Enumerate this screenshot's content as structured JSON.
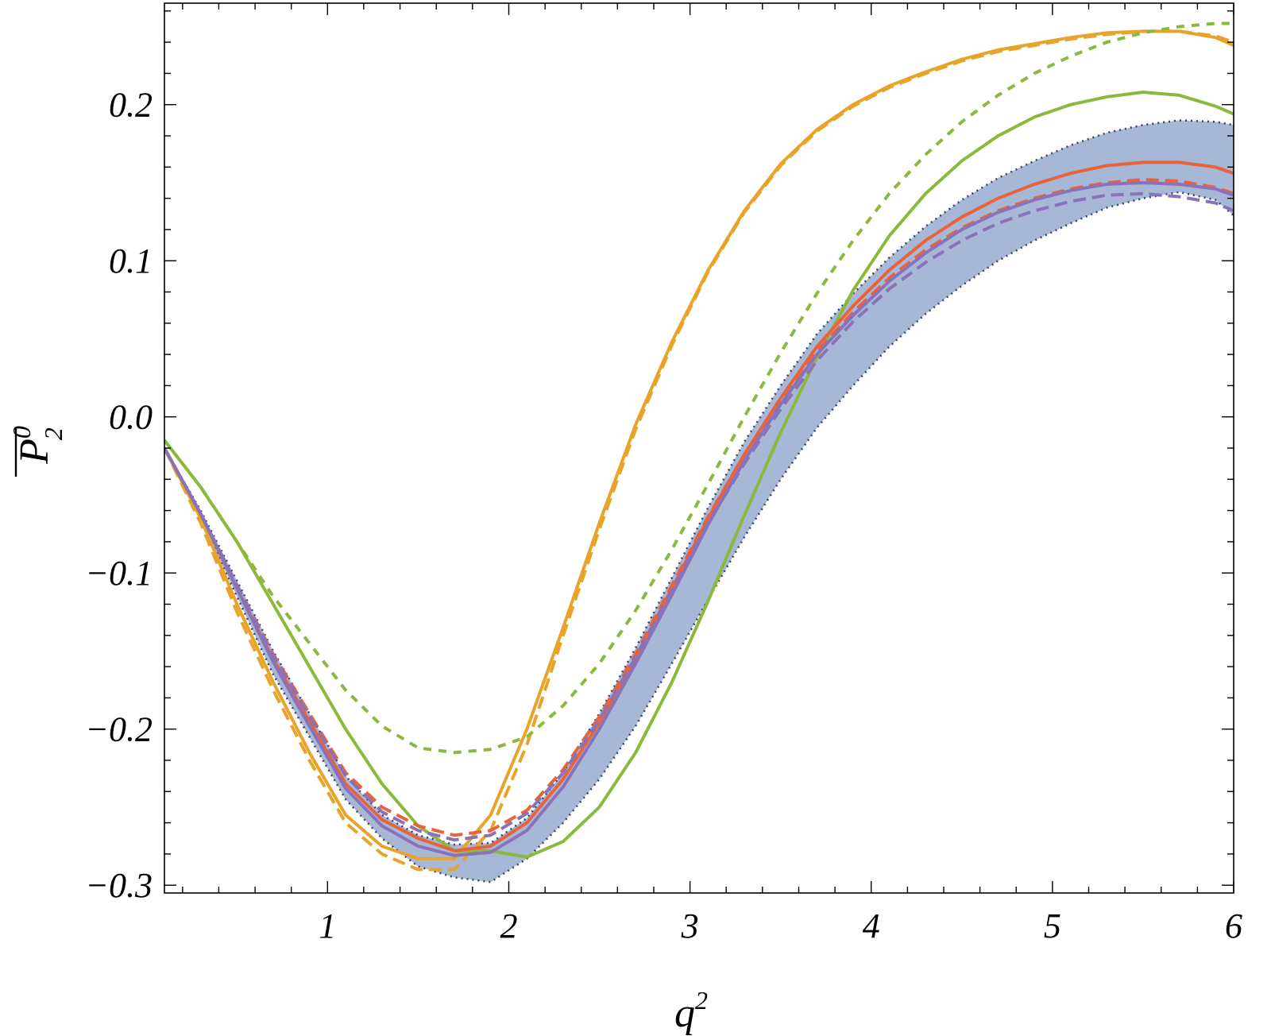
{
  "chart_data": {
    "type": "line",
    "title": "",
    "xlabel": "q",
    "xlabel_sup": "2",
    "ylabel": "P",
    "ylabel_sup": "0",
    "ylabel_sub": "2",
    "xlim": [
      0.1,
      6.0
    ],
    "ylim": [
      -0.305,
      0.265
    ],
    "grid": false,
    "legend": "none",
    "x_ticks": [
      1,
      2,
      3,
      4,
      5,
      6
    ],
    "x_tick_labels": [
      "1",
      "2",
      "3",
      "4",
      "5",
      "6"
    ],
    "y_ticks": [
      0.2,
      0.1,
      0.0,
      -0.1,
      -0.2,
      -0.3
    ],
    "y_tick_labels": [
      "0.2",
      "0.1",
      "0.0",
      "−0.1",
      "−0.2",
      "−0.3"
    ],
    "x": [
      0.1,
      0.3,
      0.5,
      0.7,
      0.9,
      1.1,
      1.3,
      1.5,
      1.7,
      1.9,
      2.1,
      2.3,
      2.5,
      2.7,
      2.9,
      3.1,
      3.3,
      3.5,
      3.7,
      3.9,
      4.1,
      4.3,
      4.5,
      4.7,
      4.9,
      5.1,
      5.3,
      5.5,
      5.7,
      5.9,
      6.0
    ],
    "band": {
      "color": "#a6b8d6",
      "edge_color": "#3a4560",
      "upper": [
        -0.02,
        -0.06,
        -0.105,
        -0.15,
        -0.19,
        -0.23,
        -0.255,
        -0.268,
        -0.274,
        -0.273,
        -0.257,
        -0.228,
        -0.19,
        -0.148,
        -0.103,
        -0.058,
        -0.016,
        0.02,
        0.053,
        0.079,
        0.102,
        0.122,
        0.139,
        0.153,
        0.164,
        0.174,
        0.182,
        0.187,
        0.19,
        0.189,
        0.187
      ],
      "lower": [
        -0.02,
        -0.065,
        -0.115,
        -0.165,
        -0.205,
        -0.245,
        -0.27,
        -0.288,
        -0.295,
        -0.298,
        -0.283,
        -0.26,
        -0.232,
        -0.198,
        -0.158,
        -0.117,
        -0.077,
        -0.04,
        -0.007,
        0.02,
        0.045,
        0.066,
        0.084,
        0.1,
        0.113,
        0.124,
        0.134,
        0.14,
        0.144,
        0.139,
        0.129
      ]
    },
    "series": [
      {
        "color": "#e8a42a",
        "style": "solid",
        "y": [
          -0.02,
          -0.065,
          -0.12,
          -0.17,
          -0.215,
          -0.255,
          -0.275,
          -0.283,
          -0.283,
          -0.255,
          -0.2,
          -0.135,
          -0.068,
          -0.005,
          0.048,
          0.094,
          0.132,
          0.162,
          0.184,
          0.2,
          0.212,
          0.221,
          0.229,
          0.235,
          0.239,
          0.243,
          0.246,
          0.247,
          0.247,
          0.243,
          0.238
        ]
      },
      {
        "color": "#e8a42a",
        "style": "dashed",
        "y": [
          -0.02,
          -0.068,
          -0.125,
          -0.175,
          -0.22,
          -0.26,
          -0.28,
          -0.29,
          -0.29,
          -0.265,
          -0.21,
          -0.14,
          -0.072,
          -0.008,
          0.046,
          0.093,
          0.131,
          0.161,
          0.183,
          0.199,
          0.211,
          0.22,
          0.228,
          0.234,
          0.238,
          0.242,
          0.245,
          0.247,
          0.247,
          0.244,
          0.24
        ]
      },
      {
        "color": "#8cb83c",
        "style": "solid",
        "y": [
          -0.015,
          -0.045,
          -0.08,
          -0.12,
          -0.16,
          -0.2,
          -0.235,
          -0.262,
          -0.278,
          -0.278,
          -0.282,
          -0.272,
          -0.25,
          -0.215,
          -0.17,
          -0.118,
          -0.063,
          -0.01,
          0.038,
          0.081,
          0.116,
          0.143,
          0.164,
          0.18,
          0.192,
          0.2,
          0.205,
          0.208,
          0.206,
          0.199,
          0.194
        ]
      },
      {
        "color": "#8cb83c",
        "style": "dotted",
        "y": [
          -0.015,
          -0.045,
          -0.08,
          -0.115,
          -0.145,
          -0.175,
          -0.198,
          -0.212,
          -0.215,
          -0.213,
          -0.205,
          -0.185,
          -0.158,
          -0.124,
          -0.085,
          -0.043,
          0.0,
          0.041,
          0.079,
          0.113,
          0.143,
          0.168,
          0.189,
          0.206,
          0.22,
          0.231,
          0.24,
          0.246,
          0.25,
          0.252,
          0.252
        ]
      },
      {
        "color": "#e8623c",
        "style": "solid",
        "y": [
          -0.02,
          -0.062,
          -0.11,
          -0.155,
          -0.195,
          -0.235,
          -0.258,
          -0.27,
          -0.278,
          -0.275,
          -0.26,
          -0.232,
          -0.196,
          -0.154,
          -0.11,
          -0.065,
          -0.024,
          0.012,
          0.045,
          0.071,
          0.094,
          0.113,
          0.128,
          0.14,
          0.149,
          0.156,
          0.161,
          0.163,
          0.163,
          0.16,
          0.156
        ]
      },
      {
        "color": "#e8623c",
        "style": "dashed",
        "y": [
          -0.02,
          -0.062,
          -0.108,
          -0.152,
          -0.19,
          -0.228,
          -0.25,
          -0.262,
          -0.268,
          -0.265,
          -0.252,
          -0.226,
          -0.192,
          -0.152,
          -0.108,
          -0.064,
          -0.024,
          0.01,
          0.042,
          0.067,
          0.089,
          0.107,
          0.121,
          0.132,
          0.14,
          0.146,
          0.15,
          0.152,
          0.151,
          0.147,
          0.143
        ]
      },
      {
        "color": "#8a72b8",
        "style": "solid",
        "y": [
          -0.02,
          -0.062,
          -0.11,
          -0.157,
          -0.198,
          -0.238,
          -0.262,
          -0.275,
          -0.281,
          -0.279,
          -0.265,
          -0.237,
          -0.2,
          -0.158,
          -0.114,
          -0.069,
          -0.028,
          0.008,
          0.04,
          0.065,
          0.087,
          0.105,
          0.12,
          0.131,
          0.139,
          0.145,
          0.149,
          0.15,
          0.149,
          0.146,
          0.142
        ]
      },
      {
        "color": "#8a72b8",
        "style": "dashed",
        "y": [
          -0.02,
          -0.062,
          -0.108,
          -0.153,
          -0.192,
          -0.23,
          -0.253,
          -0.265,
          -0.271,
          -0.268,
          -0.254,
          -0.228,
          -0.194,
          -0.154,
          -0.111,
          -0.068,
          -0.03,
          0.005,
          0.036,
          0.061,
          0.082,
          0.099,
          0.113,
          0.124,
          0.132,
          0.138,
          0.142,
          0.143,
          0.141,
          0.137,
          0.132
        ]
      }
    ]
  }
}
